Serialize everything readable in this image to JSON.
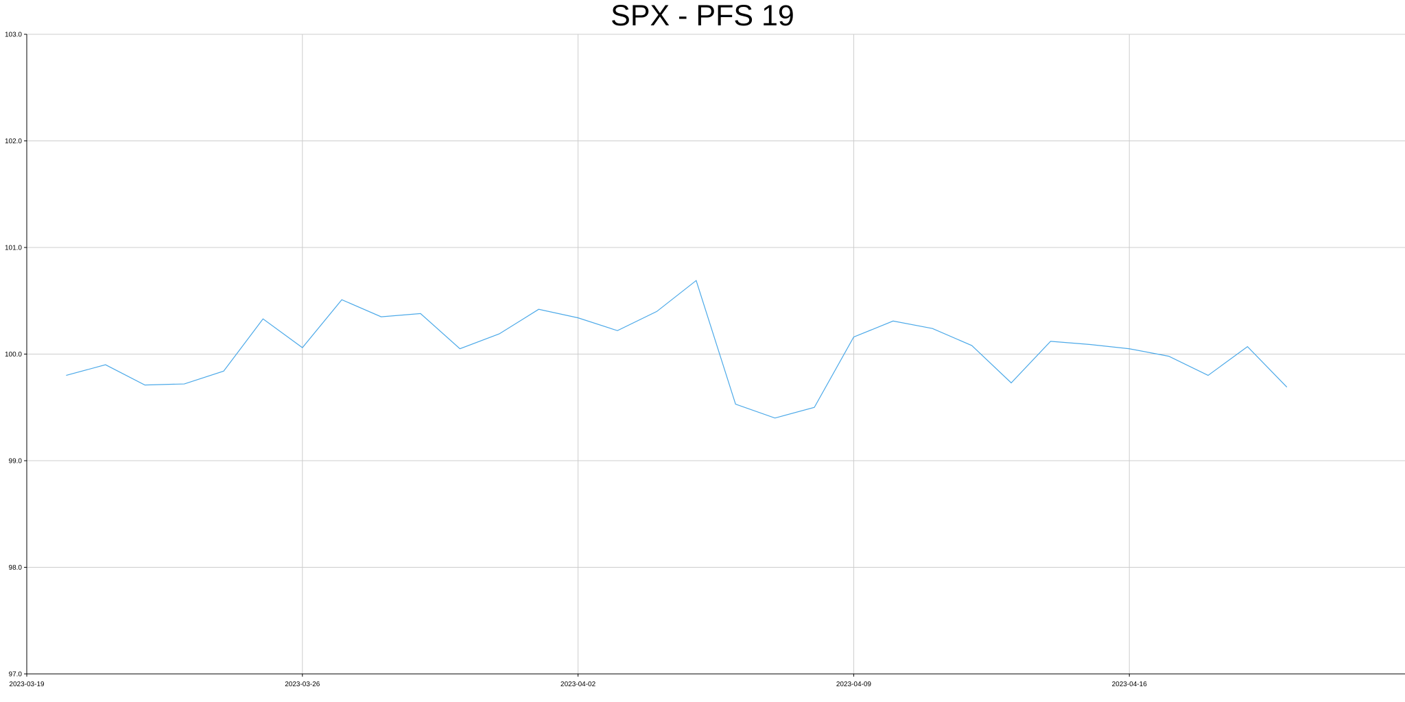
{
  "chart_data": {
    "type": "line",
    "title": "SPX - PFS 19",
    "xlabel": "",
    "ylabel": "",
    "ylim": [
      97.0,
      103.0
    ],
    "xlim": [
      "2023-03-19",
      "2023-04-23"
    ],
    "grid": true,
    "y_ticks": [
      "97.0",
      "98.0",
      "99.0",
      "100.0",
      "101.0",
      "102.0",
      "103.0"
    ],
    "x_ticks": [
      {
        "date": "2023-03-19",
        "label": "2023-03-19"
      },
      {
        "date": "2023-03-26",
        "label": "2023-03-26"
      },
      {
        "date": "2023-04-02",
        "label": "2023-04-02"
      },
      {
        "date": "2023-04-09",
        "label": "2023-04-09"
      },
      {
        "date": "2023-04-16",
        "label": "2023-04-16"
      }
    ],
    "series": [
      {
        "color": "#4aa8e8",
        "points": [
          {
            "x": "2023-03-20",
            "y": 99.8
          },
          {
            "x": "2023-03-21",
            "y": 99.9
          },
          {
            "x": "2023-03-22",
            "y": 99.71
          },
          {
            "x": "2023-03-23",
            "y": 99.72
          },
          {
            "x": "2023-03-24",
            "y": 99.84
          },
          {
            "x": "2023-03-25",
            "y": 100.33
          },
          {
            "x": "2023-03-26",
            "y": 100.06
          },
          {
            "x": "2023-03-27",
            "y": 100.51
          },
          {
            "x": "2023-03-28",
            "y": 100.35
          },
          {
            "x": "2023-03-29",
            "y": 100.38
          },
          {
            "x": "2023-03-30",
            "y": 100.05
          },
          {
            "x": "2023-03-31",
            "y": 100.19
          },
          {
            "x": "2023-04-01",
            "y": 100.42
          },
          {
            "x": "2023-04-02",
            "y": 100.34
          },
          {
            "x": "2023-04-03",
            "y": 100.22
          },
          {
            "x": "2023-04-04",
            "y": 100.4
          },
          {
            "x": "2023-04-05",
            "y": 100.69
          },
          {
            "x": "2023-04-06",
            "y": 99.53
          },
          {
            "x": "2023-04-07",
            "y": 99.4
          },
          {
            "x": "2023-04-08",
            "y": 99.5
          },
          {
            "x": "2023-04-09",
            "y": 100.16
          },
          {
            "x": "2023-04-10",
            "y": 100.31
          },
          {
            "x": "2023-04-11",
            "y": 100.24
          },
          {
            "x": "2023-04-12",
            "y": 100.08
          },
          {
            "x": "2023-04-13",
            "y": 99.73
          },
          {
            "x": "2023-04-14",
            "y": 100.12
          },
          {
            "x": "2023-04-15",
            "y": 100.09
          },
          {
            "x": "2023-04-16",
            "y": 100.05
          },
          {
            "x": "2023-04-17",
            "y": 99.98
          },
          {
            "x": "2023-04-18",
            "y": 99.8
          },
          {
            "x": "2023-04-19",
            "y": 100.07
          },
          {
            "x": "2023-04-20",
            "y": 99.69
          }
        ]
      }
    ]
  }
}
